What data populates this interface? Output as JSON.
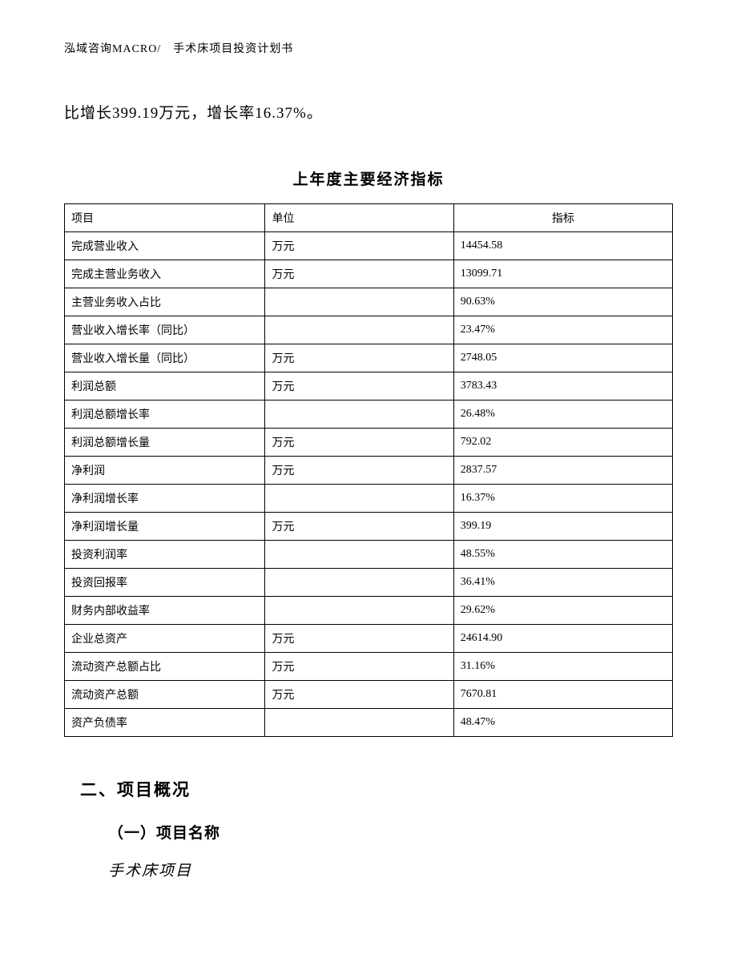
{
  "header": {
    "text": "泓域咨询MACRO/　手术床项目投资计划书"
  },
  "body_paragraph": "比增长399.19万元，增长率16.37%。",
  "table": {
    "title": "上年度主要经济指标",
    "columns": [
      "项目",
      "单位",
      "指标"
    ],
    "rows": [
      [
        "完成营业收入",
        "万元",
        "14454.58"
      ],
      [
        "完成主营业务收入",
        "万元",
        "13099.71"
      ],
      [
        "主营业务收入占比",
        "",
        "90.63%"
      ],
      [
        "营业收入增长率（同比）",
        "",
        "23.47%"
      ],
      [
        "营业收入增长量（同比）",
        "万元",
        "2748.05"
      ],
      [
        "利润总额",
        "万元",
        "3783.43"
      ],
      [
        "利润总额增长率",
        "",
        "26.48%"
      ],
      [
        "利润总额增长量",
        "万元",
        "792.02"
      ],
      [
        "净利润",
        "万元",
        "2837.57"
      ],
      [
        "净利润增长率",
        "",
        "16.37%"
      ],
      [
        "净利润增长量",
        "万元",
        "399.19"
      ],
      [
        "投资利润率",
        "",
        "48.55%"
      ],
      [
        "投资回报率",
        "",
        "36.41%"
      ],
      [
        "财务内部收益率",
        "",
        "29.62%"
      ],
      [
        "企业总资产",
        "万元",
        "24614.90"
      ],
      [
        "流动资产总额占比",
        "万元",
        "31.16%"
      ],
      [
        "流动资产总额",
        "万元",
        "7670.81"
      ],
      [
        "资产负债率",
        "",
        "48.47%"
      ]
    ]
  },
  "section": {
    "heading": "二、项目概况",
    "sub_heading": "（一）项目名称",
    "project_name": "手术床项目"
  }
}
